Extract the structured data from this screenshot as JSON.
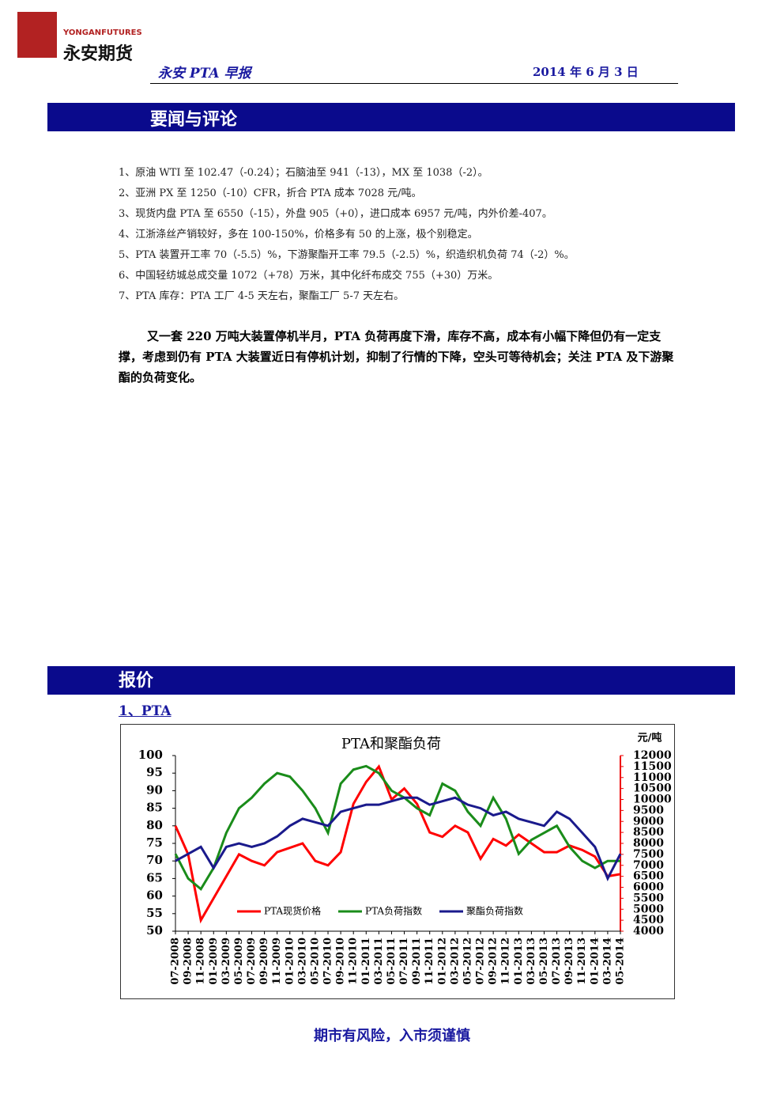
{
  "header": {
    "logo_en": "YONGANFUTURES",
    "logo_cn": "永安期货",
    "report_title": "永安 PTA 早报",
    "date": "2014 年 6 月 3 日"
  },
  "section1": {
    "title": "要闻与评论",
    "items": [
      "1、原油 WTI 至 102.47（-0.24）；石脑油至 941（-13），MX 至 1038（-2）。",
      "2、亚洲 PX 至 1250（-10）CFR，折合 PTA 成本 7028 元/吨。",
      "3、现货内盘 PTA 至 6550（-15），外盘 905（+0），进口成本 6957 元/吨，内外价差-407。",
      "4、江浙涤丝产销较好，多在 100-150%，价格多有 50 的上涨，极个别稳定。",
      "5、PTA 装置开工率 70（-5.5）%，下游聚酯开工率 79.5（-2.5）%，织造织机负荷 74（-2）%。",
      "6、中国轻纺城总成交量 1072（+78）万米，其中化纤布成交 755（+30）万米。",
      "7、PTA  库存：PTA 工厂 4-5 天左右，聚酯工厂 5-7 天左右。"
    ],
    "comment": "又一套 220 万吨大装置停机半月，PTA 负荷再度下滑，库存不高，成本有小幅下降但仍有一定支撑，考虑到仍有 PTA 大装置近日有停机计划，抑制了行情的下降，空头可等待机会；关注 PTA 及下游聚酯的负荷变化。"
  },
  "section2": {
    "title": "报价",
    "subtitle": "1、PTA"
  },
  "footer": "期市有风险，入市须谨慎",
  "chart_data": {
    "type": "line",
    "title": "PTA和聚酯负荷",
    "y2_label": "元/吨",
    "categories": [
      "07-2008",
      "09-2008",
      "11-2008",
      "01-2009",
      "03-2009",
      "05-2009",
      "07-2009",
      "09-2009",
      "11-2009",
      "01-2010",
      "03-2010",
      "05-2010",
      "07-2010",
      "09-2010",
      "11-2010",
      "01-2011",
      "03-2011",
      "05-2011",
      "07-2011",
      "09-2011",
      "11-2011",
      "01-2012",
      "03-2012",
      "05-2012",
      "07-2012",
      "09-2012",
      "11-2012",
      "01-2013",
      "03-2013",
      "05-2013",
      "07-2013",
      "09-2013",
      "11-2013",
      "01-2014",
      "03-2014",
      "05-2014"
    ],
    "series": [
      {
        "name": "PTA现货价格",
        "color": "#ff0000",
        "axis": "y2",
        "values": [
          8800,
          7500,
          4500,
          5500,
          6500,
          7500,
          7200,
          7000,
          7600,
          7800,
          8000,
          7200,
          7000,
          7600,
          9800,
          10800,
          11500,
          10000,
          10500,
          9800,
          8500,
          8300,
          8800,
          8500,
          7300,
          8200,
          7900,
          8400,
          8000,
          7600,
          7600,
          7900,
          7700,
          7400,
          6500,
          6600
        ]
      },
      {
        "name": "PTA负荷指数",
        "color": "#1a8c1a",
        "values": [
          72,
          65,
          62,
          68,
          78,
          85,
          88,
          92,
          95,
          94,
          90,
          85,
          78,
          92,
          96,
          97,
          95,
          90,
          88,
          85,
          83,
          92,
          90,
          84,
          80,
          88,
          82,
          72,
          76,
          78,
          80,
          74,
          70,
          68,
          70,
          70
        ]
      },
      {
        "name": "聚酯负荷指数",
        "color": "#1a1a8c",
        "values": [
          70,
          72,
          74,
          68,
          74,
          75,
          74,
          75,
          77,
          80,
          82,
          81,
          80,
          84,
          85,
          86,
          86,
          87,
          88,
          88,
          86,
          87,
          88,
          86,
          85,
          83,
          84,
          82,
          81,
          80,
          84,
          82,
          78,
          74,
          65,
          72
        ]
      }
    ],
    "ylim": [
      50,
      100
    ],
    "yticks": [
      50,
      55,
      60,
      65,
      70,
      75,
      80,
      85,
      90,
      95,
      100
    ],
    "y2lim": [
      4000,
      12000
    ],
    "y2ticks": [
      4000,
      4500,
      5000,
      5500,
      6000,
      6500,
      7000,
      7500,
      8000,
      8500,
      9000,
      9500,
      10000,
      10500,
      11000,
      11500,
      12000
    ],
    "legend": "bottom"
  }
}
